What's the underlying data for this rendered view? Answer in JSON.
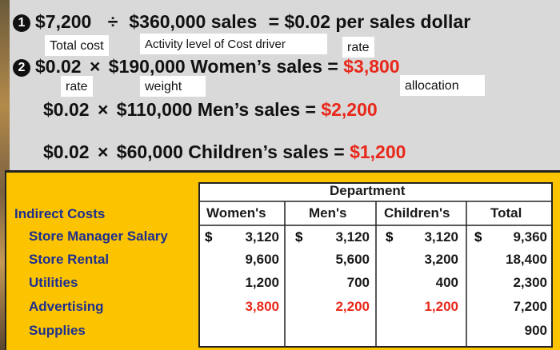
{
  "formula1": {
    "bullet": "1",
    "cost": "$7,200",
    "op": "÷",
    "driver": "$360,000 sales",
    "result": "= $0.02 per sales dollar"
  },
  "labels1": {
    "total_cost": "Total cost",
    "activity": "Activity level of Cost driver",
    "rate": "rate"
  },
  "formula2": {
    "bullet": "2",
    "womens": {
      "lhs": "$0.02",
      "op": "×",
      "base": "$190,000 Women’s sales =",
      "alloc": "$3,800"
    },
    "mens": {
      "lhs": "$0.02",
      "op": "×",
      "base": "$110,000 Men’s sales =",
      "alloc": "$2,200"
    },
    "childrens": {
      "lhs": "$0.02",
      "op": "×",
      "base": "$60,000 Children’s sales =",
      "alloc": "$1,200"
    }
  },
  "labels2": {
    "rate": "rate",
    "weight": "weight",
    "allocation": "allocation"
  },
  "table": {
    "department_header": "Department",
    "row_header": "Indirect Costs",
    "columns": [
      "Women's",
      "Men's",
      "Children's",
      "Total"
    ],
    "rows": [
      {
        "name": "Store Manager Salary",
        "values": [
          "3,120",
          "3,120",
          "3,120",
          "9,360"
        ],
        "dollar": true
      },
      {
        "name": "Store Rental",
        "values": [
          "9,600",
          "5,600",
          "3,200",
          "18,400"
        ]
      },
      {
        "name": "Utilities",
        "values": [
          "1,200",
          "700",
          "400",
          "2,300"
        ]
      },
      {
        "name": "Advertising",
        "values": [
          "3,800",
          "2,200",
          "1,200",
          "7,200"
        ],
        "highlight": true
      },
      {
        "name": "Supplies",
        "values": [
          "",
          "",
          "",
          "900"
        ]
      }
    ],
    "dollar_sign": "$",
    "colors": {
      "label": "#1e2f8f",
      "highlight": "#e8281a",
      "panel": "#fcc400"
    }
  }
}
